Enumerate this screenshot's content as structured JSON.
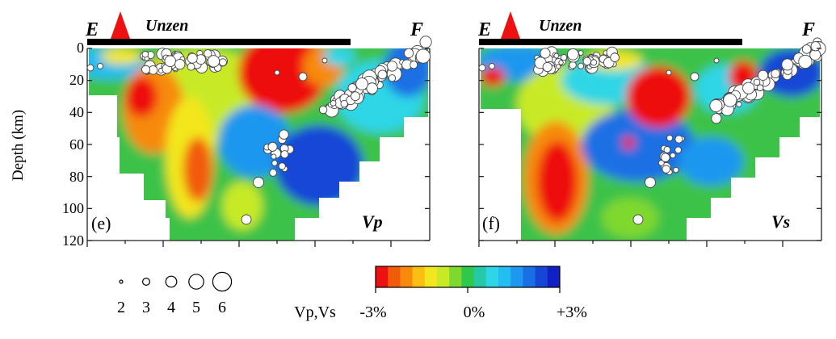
{
  "panels": [
    {
      "id": "e",
      "letter": "(e)",
      "parameter": "Vp",
      "left_label": "E",
      "right_label": "F",
      "volcano": "Unzen",
      "interpretive_note_not_printed": false
    },
    {
      "id": "f",
      "letter": "(f)",
      "parameter": "Vs",
      "left_label": "E",
      "right_label": "F",
      "volcano": "Unzen"
    }
  ],
  "axis": {
    "ylabel": "Depth (km)",
    "ticks": [
      "0",
      "20",
      "40",
      "60",
      "80",
      "100",
      "120"
    ],
    "tick_values": [
      0,
      20,
      40,
      60,
      80,
      100,
      120
    ],
    "depth_range": [
      0,
      120
    ]
  },
  "magnitude_legend": {
    "labels": [
      "2",
      "3",
      "4",
      "5",
      "6"
    ],
    "values": [
      2,
      3,
      4,
      5,
      6
    ]
  },
  "colorbar": {
    "title": "Vp,Vs",
    "labels": [
      "-3%",
      "0%",
      "+3%"
    ],
    "values": [
      -3,
      0,
      3
    ],
    "colors": [
      "#ee1111",
      "#f25a0c",
      "#f78a0a",
      "#fbbf14",
      "#f3e61e",
      "#c8ea26",
      "#7fd82d",
      "#2ec84a",
      "#25c9a8",
      "#2dd6e6",
      "#23bdf1",
      "#1e97ef",
      "#1a6fe4",
      "#1646d6",
      "#1020c4"
    ]
  },
  "colors": {
    "volcano": "#ee1111",
    "surface_bar": "#000000",
    "outline": "#444444"
  }
}
